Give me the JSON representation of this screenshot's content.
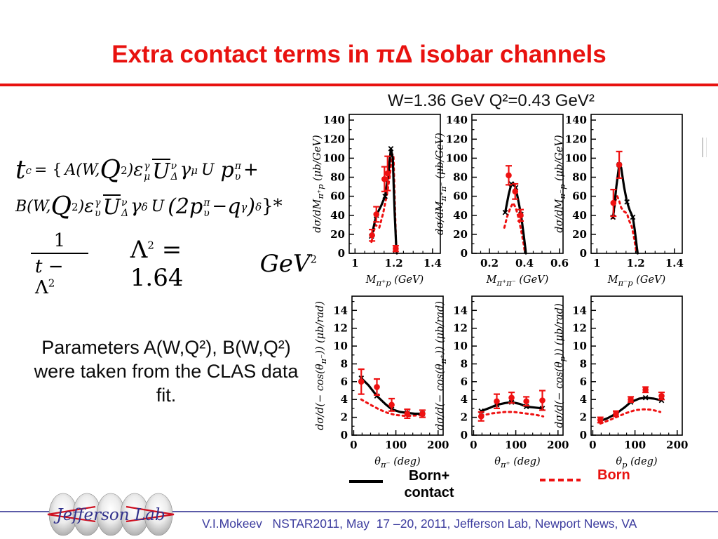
{
  "slide": {
    "title": "Extra contact terms in πΔ isobar channels",
    "kinematics": "W=1.36 GeV Q²=0.43 GeV²",
    "note_lines": [
      "Parameters A(W,Q²), B(W,Q²)",
      "were taken from the CLAS data",
      "fit."
    ]
  },
  "formula": {
    "t": "t",
    "c": "c",
    "eq": "= {",
    "AW": "A(W,",
    "Q": "Q",
    "two": "2",
    "rp": ")",
    "eps": "ε",
    "gam": "γ",
    "mu": "μ",
    "nu": "ν",
    "Del": "Δ",
    "U": "U",
    "p": "p",
    "pi": "π",
    "ups": "υ",
    "plus": "+",
    "BW": "B(W,",
    "del": "δ",
    "p2": "(2",
    "minus": "−",
    "q": "q",
    "rpd": ")",
    "star": "}*",
    "one": "1",
    "tm": "t −",
    "Lam": "Λ",
    "eq164": "= 1.64",
    "GeV": "GeV"
  },
  "legend": {
    "solid_label_line1": "Born+",
    "solid_label_line2": "contact",
    "dashed_label": "Born"
  },
  "footer": {
    "logo_text": "Jefferson Lab",
    "credit": "V.I.Mokeev   NSTAR2011, May  17 –20, 2011, Jefferson Lab, Newport News, VA"
  },
  "colors": {
    "accent_red": "#e8120f",
    "curve_black": "#000000",
    "curve_red": "#ee1111",
    "footer_text": "#3c3c9e",
    "footer_line": "#5b5ba8"
  },
  "chart_data": [
    {
      "type": "line",
      "id": "dsigma-dM-pi+p",
      "x": {
        "min": 0.97,
        "max": 1.44,
        "ticks": [
          1,
          1.2,
          1.4
        ],
        "tick_labels": [
          "1",
          "1.2",
          "1.4"
        ],
        "minor_step": 0.05
      },
      "y": {
        "min": 0,
        "max": 146,
        "tick_step": 20,
        "tick_max": 140,
        "minor_step": 10
      },
      "xlabel_segments": [
        {
          "t": "M"
        },
        {
          "t": "π⁺p",
          "sub": true
        },
        {
          "t": " (GeV)"
        }
      ],
      "ylabel_segments": [
        {
          "t": "dσ/dM"
        },
        {
          "t": "π⁺p",
          "sub": true
        },
        {
          "t": " (μb/GeV)"
        }
      ],
      "series": [
        {
          "name": "Born",
          "style": "dashed",
          "color": "#ee1111",
          "points": [
            [
              1.085,
              12
            ],
            [
              1.105,
              30
            ],
            [
              1.125,
              27
            ],
            [
              1.145,
              42
            ],
            [
              1.165,
              62
            ],
            [
              1.18,
              82
            ],
            [
              1.19,
              104
            ],
            [
              1.198,
              104
            ],
            [
              1.205,
              55
            ],
            [
              1.212,
              8
            ],
            [
              1.215,
              0
            ]
          ]
        },
        {
          "name": "Born+contact",
          "style": "solid",
          "color": "#000000",
          "points": [
            [
              1.085,
              18
            ],
            [
              1.11,
              40
            ],
            [
              1.135,
              50
            ],
            [
              1.155,
              60
            ],
            [
              1.17,
              80
            ],
            [
              1.185,
              110
            ],
            [
              1.195,
              100
            ],
            [
              1.2,
              68
            ],
            [
              1.205,
              40
            ],
            [
              1.213,
              5
            ],
            [
              1.216,
              0
            ]
          ],
          "markers": [
            [
              1.085,
              18
            ],
            [
              1.11,
              40
            ],
            [
              1.155,
              60
            ],
            [
              1.185,
              110
            ]
          ]
        }
      ],
      "data_points": {
        "color": "#ee1111",
        "points": [
          [
            1.088,
            19,
            6
          ],
          [
            1.11,
            41,
            8
          ],
          [
            1.152,
            78,
            13
          ],
          [
            1.168,
            84,
            18
          ],
          [
            1.21,
            5,
            3
          ]
        ]
      }
    },
    {
      "type": "line",
      "id": "dsigma-dM-pi+pi-",
      "x": {
        "min": 0.1,
        "max": 0.62,
        "ticks": [
          0.2,
          0.4,
          0.6
        ],
        "tick_labels": [
          "0.2",
          "0.4",
          "0.6"
        ],
        "minor_step": 0.05
      },
      "y": {
        "min": 0,
        "max": 146,
        "tick_step": 20,
        "tick_max": 140,
        "minor_step": 10
      },
      "xlabel_segments": [
        {
          "t": "M"
        },
        {
          "t": "π⁺π⁻",
          "sub": true
        },
        {
          "t": " (GeV)"
        }
      ],
      "ylabel_segments": [
        {
          "t": "dσ/dM"
        },
        {
          "t": "π⁺π⁻",
          "sub": true
        },
        {
          "t": " (μb/GeV)"
        }
      ],
      "series": [
        {
          "name": "Born",
          "style": "dashed",
          "color": "#ee1111",
          "points": [
            [
              0.285,
              27
            ],
            [
              0.3,
              38
            ],
            [
              0.32,
              48
            ],
            [
              0.335,
              53
            ],
            [
              0.35,
              48
            ],
            [
              0.365,
              38
            ],
            [
              0.38,
              25
            ],
            [
              0.395,
              10
            ],
            [
              0.403,
              0
            ]
          ]
        },
        {
          "name": "Born+contact",
          "style": "solid",
          "color": "#000000",
          "points": [
            [
              0.29,
              43
            ],
            [
              0.31,
              62
            ],
            [
              0.325,
              73
            ],
            [
              0.335,
              74
            ],
            [
              0.35,
              69
            ],
            [
              0.365,
              55
            ],
            [
              0.38,
              41
            ],
            [
              0.395,
              20
            ],
            [
              0.405,
              5
            ],
            [
              0.408,
              0
            ]
          ],
          "markers": [
            [
              0.29,
              43
            ],
            [
              0.325,
              73
            ],
            [
              0.35,
              69
            ],
            [
              0.38,
              41
            ]
          ]
        }
      ],
      "data_points": {
        "color": "#ee1111",
        "points": [
          [
            0.31,
            82,
            10
          ],
          [
            0.347,
            65,
            8
          ],
          [
            0.378,
            40,
            6
          ]
        ]
      }
    },
    {
      "type": "line",
      "id": "dsigma-dM-pi-p",
      "x": {
        "min": 0.97,
        "max": 1.44,
        "ticks": [
          1,
          1.2,
          1.4
        ],
        "tick_labels": [
          "1",
          "1.2",
          "1.4"
        ],
        "minor_step": 0.05
      },
      "y": {
        "min": 0,
        "max": 146,
        "tick_step": 20,
        "tick_max": 140,
        "minor_step": 10
      },
      "xlabel_segments": [
        {
          "t": "M"
        },
        {
          "t": "π⁻p",
          "sub": true
        },
        {
          "t": " (GeV)"
        }
      ],
      "ylabel_segments": [
        {
          "t": "dσ/dM"
        },
        {
          "t": "π⁻p",
          "sub": true
        },
        {
          "t": " (μb/GeV)"
        }
      ],
      "series": [
        {
          "name": "Born",
          "style": "dashed",
          "color": "#ee1111",
          "points": [
            [
              1.083,
              37
            ],
            [
              1.095,
              55
            ],
            [
              1.105,
              60
            ],
            [
              1.115,
              55
            ],
            [
              1.125,
              48
            ],
            [
              1.14,
              44
            ],
            [
              1.155,
              42
            ],
            [
              1.165,
              35
            ],
            [
              1.18,
              28
            ],
            [
              1.19,
              18
            ],
            [
              1.2,
              6
            ],
            [
              1.205,
              0
            ]
          ]
        },
        {
          "name": "Born+contact",
          "style": "solid",
          "color": "#000000",
          "points": [
            [
              1.083,
              38
            ],
            [
              1.09,
              50
            ],
            [
              1.1,
              70
            ],
            [
              1.115,
              93
            ],
            [
              1.125,
              90
            ],
            [
              1.14,
              70
            ],
            [
              1.155,
              54
            ],
            [
              1.17,
              45
            ],
            [
              1.185,
              38
            ],
            [
              1.195,
              25
            ],
            [
              1.205,
              8
            ],
            [
              1.21,
              0
            ]
          ],
          "markers": [
            [
              1.083,
              38
            ],
            [
              1.115,
              93
            ],
            [
              1.155,
              54
            ],
            [
              1.185,
              38
            ]
          ]
        }
      ],
      "data_points": {
        "color": "#ee1111",
        "points": [
          [
            1.085,
            53,
            14
          ],
          [
            1.115,
            93,
            14
          ]
        ]
      }
    },
    {
      "type": "line",
      "id": "dsigma-dcos-theta-pi-",
      "x": {
        "min": -4,
        "max": 212,
        "ticks": [
          0,
          100,
          200
        ],
        "tick_labels": [
          "0",
          "100",
          "200"
        ],
        "minor_step": 20
      },
      "y": {
        "min": 0,
        "max": 15.6,
        "tick_step": 2,
        "tick_max": 14,
        "minor_step": 1
      },
      "xlabel_segments": [
        {
          "t": "θ"
        },
        {
          "t": "π⁻",
          "sub": true
        },
        {
          "t": " (deg)"
        }
      ],
      "ylabel_segments": [
        {
          "t": "dσ/d(− cos(θ"
        },
        {
          "t": "π⁻",
          "sub": true
        },
        {
          "t": ")) (μb/rad)"
        }
      ],
      "series": [
        {
          "name": "Born",
          "style": "dashed",
          "color": "#ee1111",
          "points": [
            [
              18,
              4.0
            ],
            [
              40,
              3.4
            ],
            [
              60,
              2.9
            ],
            [
              80,
              2.5
            ],
            [
              100,
              2.25
            ],
            [
              125,
              2.15
            ],
            [
              145,
              2.2
            ],
            [
              165,
              2.3
            ]
          ]
        },
        {
          "name": "Born+contact",
          "style": "solid",
          "color": "#000000",
          "points": [
            [
              18,
              6.4
            ],
            [
              35,
              5.6
            ],
            [
              55,
              4.4
            ],
            [
              75,
              3.5
            ],
            [
              90,
              2.9
            ],
            [
              110,
              2.6
            ],
            [
              127,
              2.5
            ],
            [
              145,
              2.4
            ],
            [
              163,
              2.4
            ]
          ],
          "markers": [
            [
              18,
              6.4
            ],
            [
              55,
              4.4
            ],
            [
              90,
              2.9
            ],
            [
              127,
              2.5
            ],
            [
              163,
              2.4
            ]
          ]
        }
      ],
      "data_points": {
        "color": "#ee1111",
        "points": [
          [
            18,
            6.0,
            1.4
          ],
          [
            55,
            5.4,
            0.9
          ],
          [
            90,
            3.4,
            0.7
          ],
          [
            127,
            2.4,
            0.5
          ],
          [
            163,
            2.4,
            0.4
          ]
        ]
      }
    },
    {
      "type": "line",
      "id": "dsigma-dcos-theta-pi+",
      "x": {
        "min": -4,
        "max": 212,
        "ticks": [
          0,
          100,
          200
        ],
        "tick_labels": [
          "0",
          "100",
          "200"
        ],
        "minor_step": 20
      },
      "y": {
        "min": 0,
        "max": 15.6,
        "tick_step": 2,
        "tick_max": 14,
        "minor_step": 1
      },
      "xlabel_segments": [
        {
          "t": "θ"
        },
        {
          "t": "π⁺",
          "sub": true
        },
        {
          "t": " (deg)"
        }
      ],
      "ylabel_segments": [
        {
          "t": "dσ/d(− cos(θ"
        },
        {
          "t": "π⁺",
          "sub": true
        },
        {
          "t": ")) (μb/rad)"
        }
      ],
      "series": [
        {
          "name": "Born",
          "style": "dashed",
          "color": "#ee1111",
          "points": [
            [
              18,
              2.2
            ],
            [
              45,
              2.45
            ],
            [
              75,
              2.6
            ],
            [
              95,
              2.6
            ],
            [
              120,
              2.45
            ],
            [
              145,
              2.3
            ],
            [
              165,
              2.1
            ]
          ]
        },
        {
          "name": "Born+contact",
          "style": "solid",
          "color": "#000000",
          "points": [
            [
              18,
              2.7
            ],
            [
              40,
              3.1
            ],
            [
              55,
              3.4
            ],
            [
              75,
              3.6
            ],
            [
              90,
              3.7
            ],
            [
              110,
              3.5
            ],
            [
              125,
              3.2
            ],
            [
              145,
              3.1
            ],
            [
              163,
              3.0
            ]
          ],
          "markers": [
            [
              18,
              2.7
            ],
            [
              55,
              3.4
            ],
            [
              90,
              3.7
            ],
            [
              125,
              3.2
            ],
            [
              163,
              3.0
            ]
          ]
        }
      ],
      "data_points": {
        "color": "#ee1111",
        "points": [
          [
            18,
            2.1,
            0.5
          ],
          [
            55,
            3.8,
            0.8
          ],
          [
            90,
            4.2,
            0.6
          ],
          [
            125,
            3.8,
            0.5
          ],
          [
            163,
            3.9,
            1.1
          ]
        ]
      }
    },
    {
      "type": "line",
      "id": "dsigma-dcos-theta-p",
      "x": {
        "min": -4,
        "max": 212,
        "ticks": [
          0,
          100,
          200
        ],
        "tick_labels": [
          "0",
          "100",
          "200"
        ],
        "minor_step": 20
      },
      "y": {
        "min": 0,
        "max": 15.6,
        "tick_step": 2,
        "tick_max": 14,
        "minor_step": 1
      },
      "xlabel_segments": [
        {
          "t": "θ"
        },
        {
          "t": "p",
          "sub": true
        },
        {
          "t": " (deg)"
        }
      ],
      "ylabel_segments": [
        {
          "t": "dσ/d(− cos(θ"
        },
        {
          "t": "p",
          "sub": true
        },
        {
          "t": ")) (μb/rad)"
        }
      ],
      "series": [
        {
          "name": "Born",
          "style": "dashed",
          "color": "#ee1111",
          "points": [
            [
              18,
              1.3
            ],
            [
              40,
              1.7
            ],
            [
              60,
              2.1
            ],
            [
              80,
              2.5
            ],
            [
              100,
              2.8
            ],
            [
              120,
              2.9
            ],
            [
              140,
              2.85
            ],
            [
              160,
              2.6
            ]
          ]
        },
        {
          "name": "Born+contact",
          "style": "solid",
          "color": "#000000",
          "points": [
            [
              18,
              1.6
            ],
            [
              35,
              1.9
            ],
            [
              55,
              2.4
            ],
            [
              75,
              3.1
            ],
            [
              90,
              3.7
            ],
            [
              110,
              4.1
            ],
            [
              125,
              4.2
            ],
            [
              145,
              4.1
            ],
            [
              163,
              3.9
            ]
          ],
          "markers": [
            [
              18,
              1.6
            ],
            [
              55,
              2.4
            ],
            [
              90,
              3.7
            ],
            [
              125,
              4.2
            ],
            [
              163,
              3.9
            ]
          ]
        }
      ],
      "data_points": {
        "color": "#ee1111",
        "points": [
          [
            18,
            1.7,
            0.3
          ],
          [
            55,
            2.4,
            0.3
          ],
          [
            90,
            4.0,
            0.3
          ],
          [
            125,
            5.1,
            0.3
          ],
          [
            163,
            4.4,
            0.4
          ]
        ]
      }
    }
  ]
}
